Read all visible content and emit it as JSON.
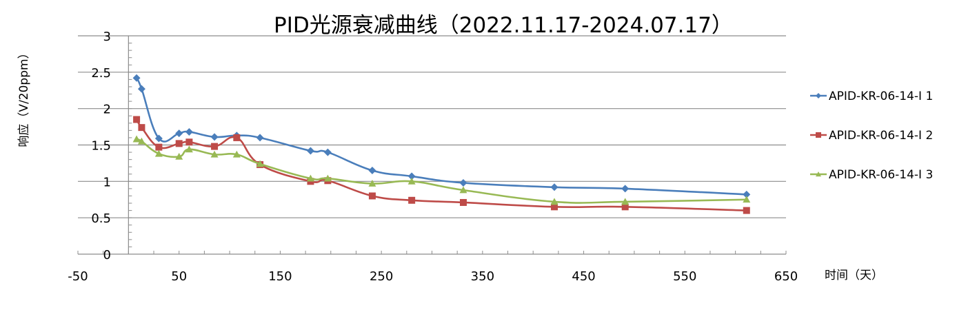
{
  "chart_data": {
    "type": "line",
    "title": "PID光源衰减曲线（2022.11.17-2024.07.17）",
    "xlabel": "时间（天）",
    "ylabel": "响应（V/20ppm）",
    "xlim": [
      -50,
      650
    ],
    "ylim": [
      0,
      3
    ],
    "xticks": [
      -50,
      50,
      150,
      250,
      350,
      450,
      550,
      650
    ],
    "xtick_labels": [
      "-50",
      "50",
      "150",
      "250",
      "350",
      "450",
      "550",
      "650"
    ],
    "yticks": [
      0,
      0.5,
      1,
      1.5,
      2,
      2.5,
      3
    ],
    "ytick_labels": [
      "0",
      "0.5",
      "1",
      "1.5",
      "2",
      "2.5",
      "3"
    ],
    "grid": "horizontal",
    "smooth": true,
    "legend_position": "right",
    "x": [
      8,
      13,
      30,
      50,
      60,
      85,
      107,
      130,
      180,
      197,
      241,
      280,
      331,
      421,
      491,
      611
    ],
    "series": [
      {
        "name": "APID-KR-06-14-I 1",
        "color": "#4a7ebb",
        "marker": "diamond",
        "values": [
          2.42,
          2.27,
          1.59,
          1.66,
          1.68,
          1.61,
          1.63,
          1.6,
          1.42,
          1.4,
          1.15,
          1.07,
          0.98,
          0.92,
          0.9,
          0.82
        ]
      },
      {
        "name": "APID-KR-06-14-I 2",
        "color": "#be4b48",
        "marker": "square",
        "values": [
          1.85,
          1.74,
          1.47,
          1.52,
          1.54,
          1.48,
          1.6,
          1.23,
          1.0,
          1.01,
          0.8,
          0.74,
          0.71,
          0.65,
          0.65,
          0.6
        ]
      },
      {
        "name": "APID-KR-06-14-I 3",
        "color": "#98b954",
        "marker": "triangle",
        "values": [
          1.58,
          1.55,
          1.38,
          1.34,
          1.44,
          1.37,
          1.37,
          1.24,
          1.04,
          1.04,
          0.97,
          1.0,
          0.88,
          0.72,
          0.72,
          0.75
        ]
      }
    ]
  }
}
